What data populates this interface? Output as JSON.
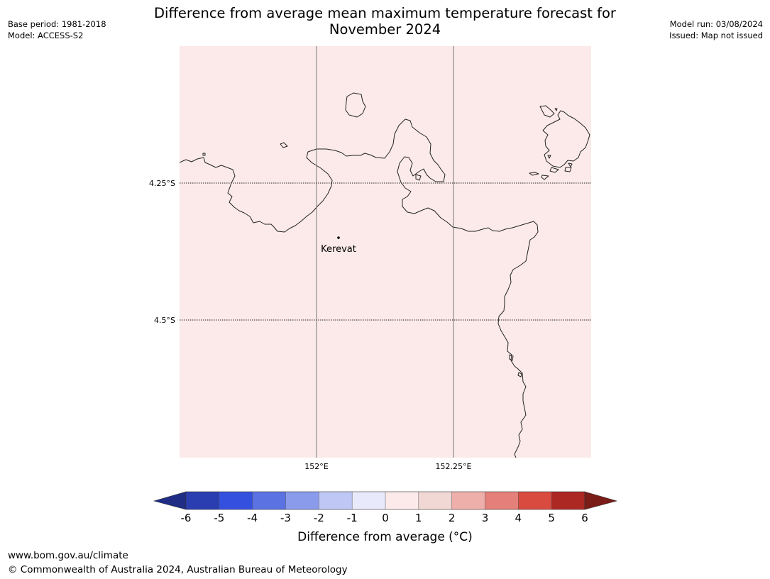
{
  "header": {
    "title_line1": "Difference from average mean maximum temperature forecast for",
    "title_line2": "November 2024",
    "base_period": "Base period: 1981-2018",
    "model": "Model: ACCESS-S2",
    "model_run": "Model run: 03/08/2024",
    "issued": "Issued: Map not issued"
  },
  "map": {
    "fill_color": "#fbeae9",
    "coast_color": "#222222",
    "lat_labels": [
      "4.25°S",
      "4.5°S"
    ],
    "lon_labels": [
      "152°E",
      "152.25°E"
    ],
    "place": {
      "name": "Kerevat"
    }
  },
  "colorbar": {
    "ticks": [
      "-6",
      "-5",
      "-4",
      "-3",
      "-2",
      "-1",
      "0",
      "1",
      "2",
      "3",
      "4",
      "5",
      "6"
    ],
    "under_color": "#1f2d85",
    "over_color": "#7a1d18",
    "colors": [
      "#2a3eb1",
      "#3450de",
      "#5b72e3",
      "#8a9bec",
      "#bfc8f5",
      "#e8eafc",
      "#fbeae9",
      "#f2d8d5",
      "#eeaeaa",
      "#e57f79",
      "#d94a3f",
      "#ac2822"
    ],
    "label": "Difference from average (°C)"
  },
  "footer": {
    "url": "www.bom.gov.au/climate",
    "copyright": "© Commonwealth of Australia 2024, Australian Bureau of Meteorology"
  }
}
